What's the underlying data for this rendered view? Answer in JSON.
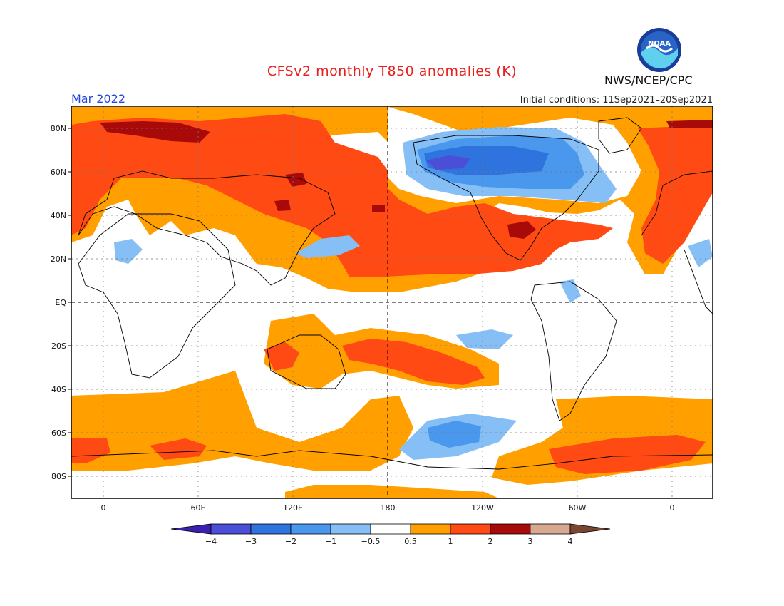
{
  "header": {
    "title": "CFSv2 monthly T850 anomalies (K)",
    "month": "Mar 2022",
    "initial_conditions": "Initial conditions: 11Sep2021–20Sep2021",
    "agency": "NWS/NCEP/CPC",
    "logo_text": "NOAA"
  },
  "axes": {
    "lat_labels": [
      "80N",
      "60N",
      "40N",
      "20N",
      "EQ",
      "20S",
      "40S",
      "60S",
      "80S"
    ],
    "lon_labels": [
      "0",
      "60E",
      "120E",
      "180",
      "120W",
      "60W",
      "0"
    ]
  },
  "colorbar": {
    "labels": [
      "−4",
      "−3",
      "−2",
      "−1",
      "−0.5",
      "0.5",
      "1",
      "2",
      "3",
      "4"
    ],
    "colors": [
      "#3a1fb0",
      "#4b4ed6",
      "#2f74de",
      "#4a98ee",
      "#86bff5",
      "#ffffff",
      "#ff9f00",
      "#ff4a14",
      "#a80a0a",
      "#d9a890",
      "#7a4632"
    ]
  }
}
